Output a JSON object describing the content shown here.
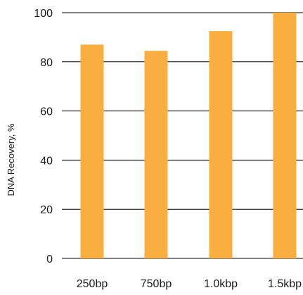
{
  "chart_data": {
    "type": "bar",
    "categories": [
      "250bp",
      "750bp",
      "1.0kbp",
      "1.5kbp"
    ],
    "values": [
      87,
      84.5,
      92.5,
      100
    ],
    "title": "",
    "xlabel": "",
    "ylabel": "DNA Recovery, %",
    "ylim": [
      0,
      100
    ],
    "yticks": [
      0,
      20,
      40,
      60,
      80,
      100
    ],
    "grid": true,
    "legend": "none",
    "bar_color": "#F9AE3F",
    "grid_color": "#000000"
  }
}
